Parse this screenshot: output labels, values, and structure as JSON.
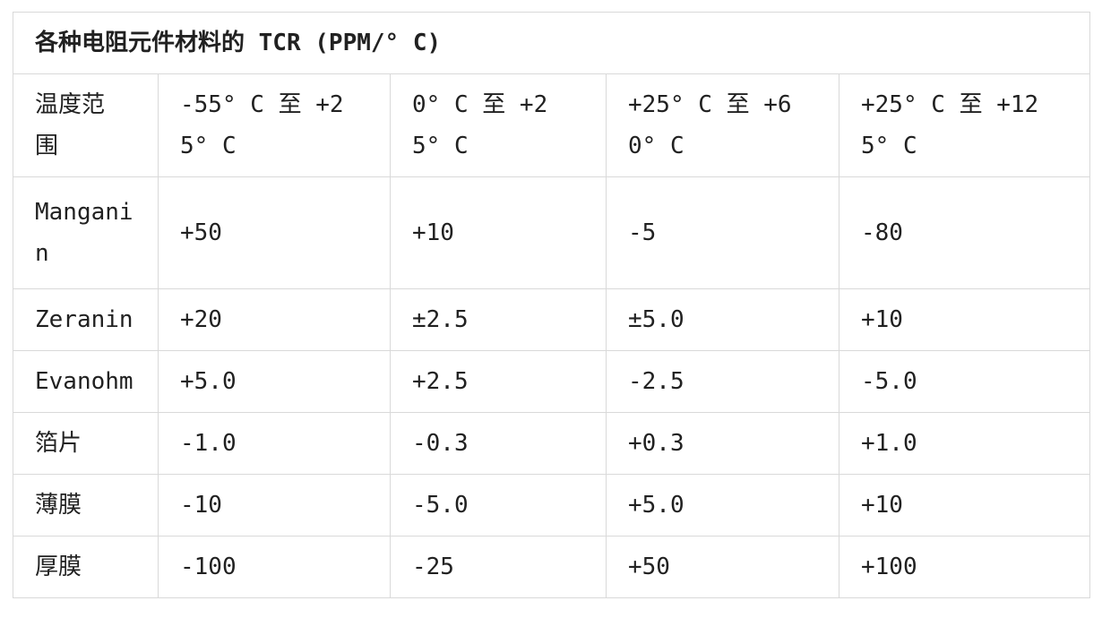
{
  "table": {
    "title": "各种电阻元件材料的 TCR (PPM/° C)",
    "header": [
      "温度范\n围",
      "-55° C 至 +2\n5° C",
      "0° C 至 +2\n5° C",
      "+25° C 至 +6\n0° C",
      "+25° C 至 +12\n5° C"
    ],
    "rows": [
      [
        "Mangani\nn",
        "+50",
        "+10",
        "-5",
        "-80"
      ],
      [
        "Zeranin",
        "+20",
        "±2.5",
        "±5.0",
        "+10"
      ],
      [
        "Evanohm",
        "+5.0",
        "+2.5",
        "-2.5",
        "-5.0"
      ],
      [
        "箔片",
        "-1.0",
        "-0.3",
        "+0.3",
        "+1.0"
      ],
      [
        "薄膜",
        "-10",
        "-5.0",
        "+5.0",
        "+10"
      ],
      [
        "厚膜",
        "-100",
        "-25",
        "+50",
        "+100"
      ]
    ]
  },
  "chart_data": {
    "type": "table",
    "title": "各种电阻元件材料的 TCR (PPM/°C)",
    "columns": [
      "温度范围",
      "-55°C 至 +25°C",
      "0°C 至 +25°C",
      "+25°C 至 +60°C",
      "+25°C 至 +125°C"
    ],
    "materials": [
      "Manganin",
      "Zeranin",
      "Evanohm",
      "箔片",
      "薄膜",
      "厚膜"
    ],
    "values": [
      [
        "+50",
        "+10",
        "-5",
        "-80"
      ],
      [
        "+20",
        "±2.5",
        "±5.0",
        "+10"
      ],
      [
        "+5.0",
        "+2.5",
        "-2.5",
        "-5.0"
      ],
      [
        "-1.0",
        "-0.3",
        "+0.3",
        "+1.0"
      ],
      [
        "-10",
        "-5.0",
        "+5.0",
        "+10"
      ],
      [
        "-100",
        "-25",
        "+50",
        "+100"
      ]
    ]
  },
  "colors": {
    "border": "#d9d9d9",
    "text": "#212121",
    "background": "#ffffff"
  }
}
